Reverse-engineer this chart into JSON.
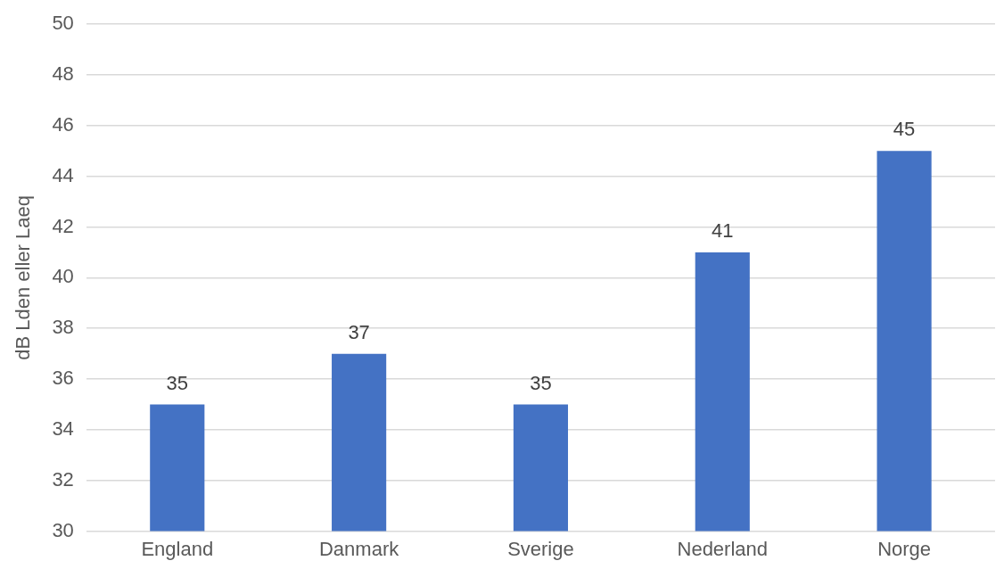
{
  "chart_data": {
    "type": "bar",
    "ylabel": "dB Lden eller Laeq",
    "categories": [
      "England",
      "Danmark",
      "Sverige",
      "Nederland",
      "Norge"
    ],
    "values": [
      35,
      37,
      35,
      41,
      45
    ],
    "color": "#4472c4",
    "ylim": [
      30,
      50
    ],
    "yticks": [
      30,
      32,
      34,
      36,
      38,
      40,
      42,
      44,
      46,
      48,
      50
    ],
    "grid": "y",
    "data_labels": true,
    "legend": false
  }
}
